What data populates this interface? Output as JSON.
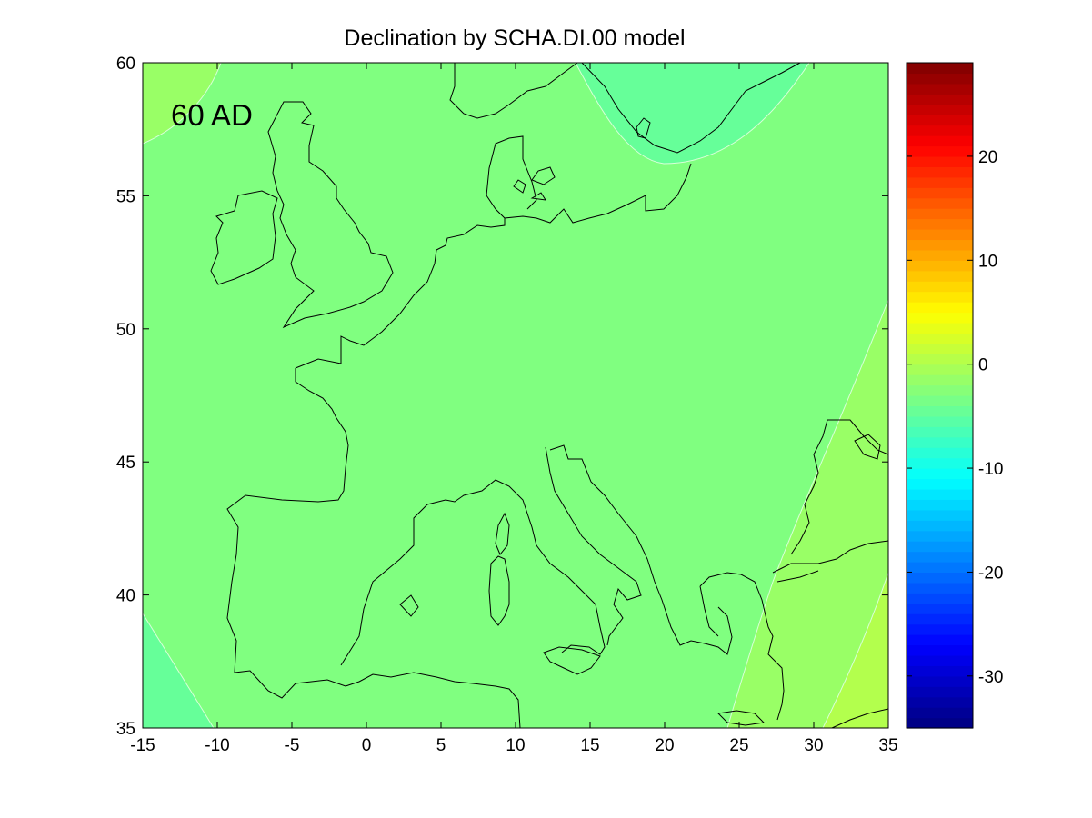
{
  "chart_data": {
    "type": "heatmap",
    "title": "Declination by SCHA.DI.00 model",
    "annotation": "60 AD",
    "xlabel": "",
    "ylabel": "",
    "xlim": [
      -15,
      35
    ],
    "ylim": [
      35,
      60
    ],
    "xticks": [
      "-15",
      "-10",
      "-5",
      "0",
      "5",
      "10",
      "15",
      "20",
      "25",
      "30",
      "35"
    ],
    "yticks": [
      "35",
      "40",
      "45",
      "50",
      "55",
      "60"
    ],
    "colorbar": {
      "colormap": "jet",
      "range": [
        -35,
        29
      ],
      "ticks": [
        "20",
        "10",
        "0",
        "-10",
        "-20",
        "-30"
      ],
      "tick_values": [
        20,
        10,
        0,
        -10,
        -20,
        -30
      ]
    },
    "contour_levels": [
      {
        "value": -3,
        "color": "#66ff99",
        "description": "NE Baltic region and SW corner"
      },
      {
        "value": 0,
        "color": "#80ff80",
        "description": "Most of western and central Europe"
      },
      {
        "value": 2,
        "color": "#99ff66",
        "description": "NW corner and Balkans / Turkey strip"
      },
      {
        "value": 4,
        "color": "#b3ff4d",
        "description": "Far south-east corner"
      }
    ],
    "coastline_color": "#000000",
    "grid": false
  },
  "colors": {
    "background": "#ffffff",
    "axes_box": "#000000",
    "main_field": "#80ff80"
  }
}
